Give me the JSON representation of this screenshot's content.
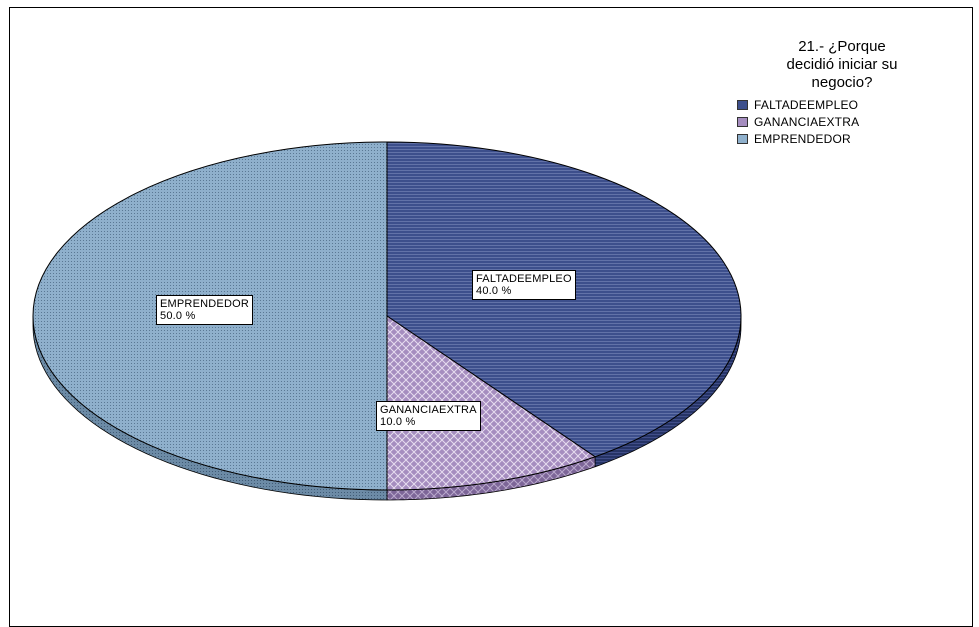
{
  "chart_data": {
    "type": "pie",
    "title": "21.- ¿Porque decidió iniciar su negocio?",
    "title_lines": [
      "21.- ¿Porque",
      "decidió iniciar su",
      "negocio?"
    ],
    "legend_position": "top-right",
    "slices": [
      {
        "label": "FALTADEEMPLEO",
        "value": 40.0,
        "display": "40.0 %",
        "color": "#3d4f8c",
        "pattern": "horizontal-lines"
      },
      {
        "label": "GANANCIAEXTRA",
        "value": 10.0,
        "display": "10.0 %",
        "color": "#a58dbf",
        "pattern": "crosshatch"
      },
      {
        "label": "EMPRENDEDOR",
        "value": 50.0,
        "display": "50.0 %",
        "color": "#8fb0cc",
        "pattern": "dots"
      }
    ]
  }
}
